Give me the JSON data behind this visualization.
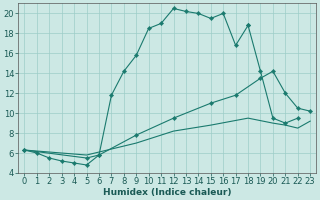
{
  "title": "",
  "xlabel": "Humidex (Indice chaleur)",
  "xlim": [
    -0.5,
    23.5
  ],
  "ylim": [
    4,
    21
  ],
  "xticks": [
    0,
    1,
    2,
    3,
    4,
    5,
    6,
    7,
    8,
    9,
    10,
    11,
    12,
    13,
    14,
    15,
    16,
    17,
    18,
    19,
    20,
    21,
    22,
    23
  ],
  "yticks": [
    4,
    6,
    8,
    10,
    12,
    14,
    16,
    18,
    20
  ],
  "bg_color": "#cce8e4",
  "line_color": "#1a7a6e",
  "line1_x": [
    0,
    1,
    2,
    3,
    4,
    5,
    6,
    7,
    8,
    9,
    10,
    11,
    12,
    13,
    14,
    15,
    16,
    17,
    18
  ],
  "line1_y": [
    6.3,
    6.0,
    5.5,
    5.2,
    5.0,
    4.8,
    5.8,
    11.8,
    14.2,
    15.8,
    18.5,
    19.0,
    20.5,
    20.2,
    20.0,
    19.5,
    20.0,
    16.8,
    18.8
  ],
  "line1b_x": [
    18,
    19,
    20,
    21,
    22
  ],
  "line1b_y": [
    18.8,
    14.2,
    9.5,
    9.0,
    9.5
  ],
  "line2_x": [
    0,
    5,
    6,
    9,
    12,
    15,
    17,
    19,
    20,
    21,
    22,
    23
  ],
  "line2_y": [
    6.3,
    5.5,
    5.8,
    7.8,
    9.5,
    11.0,
    11.8,
    13.5,
    14.2,
    12.0,
    10.5,
    10.2
  ],
  "line3_x": [
    0,
    5,
    9,
    12,
    15,
    18,
    20,
    21,
    22,
    23
  ],
  "line3_y": [
    6.3,
    5.8,
    7.0,
    8.2,
    8.8,
    9.5,
    9.0,
    8.8,
    8.5,
    9.2
  ],
  "tick_fontsize": 6,
  "xlabel_fontsize": 6.5
}
